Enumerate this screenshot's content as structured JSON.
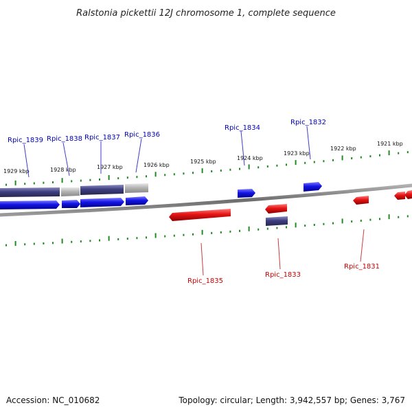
{
  "title": "Ralstonia pickettii 12J chromosome 1, complete sequence",
  "footer": {
    "accession": "Accession: NC_010682",
    "summary": "Topology: circular; Length: 3,942,557 bp; Genes: 3,767"
  },
  "colors": {
    "forward_gene": "#1414e6",
    "reverse_gene": "#e61414",
    "forward_gene_label": "#0000b4",
    "reverse_gene_label": "#c80000",
    "tick": "#1f8a1f",
    "backbone": "#777777",
    "cds_dark": "#3e3e80",
    "cds_light": "#b4b4b4"
  },
  "kbp_labels": [
    "1929 kbp",
    "1928 kbp",
    "1927 kbp",
    "1926 kbp",
    "1925 kbp",
    "1924 kbp",
    "1923 kbp",
    "1922 kbp",
    "1921 kbp"
  ],
  "genes_forward": [
    "Rpic_1839",
    "Rpic_1838",
    "Rpic_1837",
    "Rpic_1836",
    "Rpic_1834",
    "Rpic_1832"
  ],
  "genes_reverse": [
    "Rpic_1835",
    "Rpic_1833",
    "Rpic_1831"
  ]
}
